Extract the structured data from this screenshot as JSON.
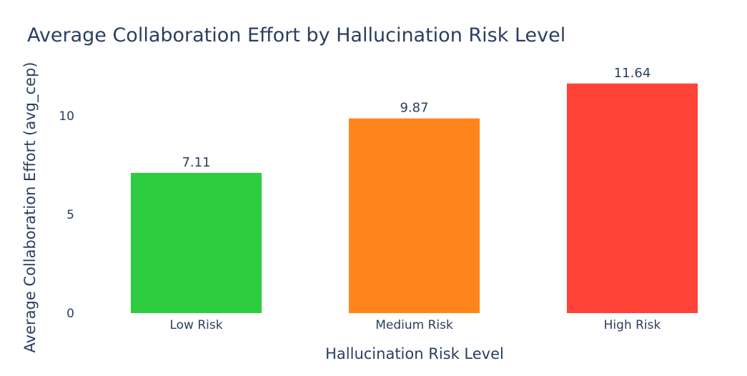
{
  "chart_data": {
    "type": "bar",
    "title": "Average Collaboration Effort by Hallucination Risk Level",
    "xlabel": "Hallucination Risk Level",
    "ylabel": "Average Collaboration Effort (avg_cep)",
    "categories": [
      "Low Risk",
      "Medium Risk",
      "High Risk"
    ],
    "values": [
      7.11,
      9.87,
      11.64
    ],
    "value_labels": [
      "7.11",
      "9.87",
      "11.64"
    ],
    "bar_colors": [
      "#2ecc40",
      "#ff851b",
      "#ff4136"
    ],
    "ylim": [
      0,
      12.25
    ],
    "yticks": [
      0,
      5,
      10
    ],
    "ytick_labels": [
      "0",
      "5",
      "10"
    ],
    "grid": false,
    "legend": "none",
    "text_color": "#2a3f5f"
  }
}
